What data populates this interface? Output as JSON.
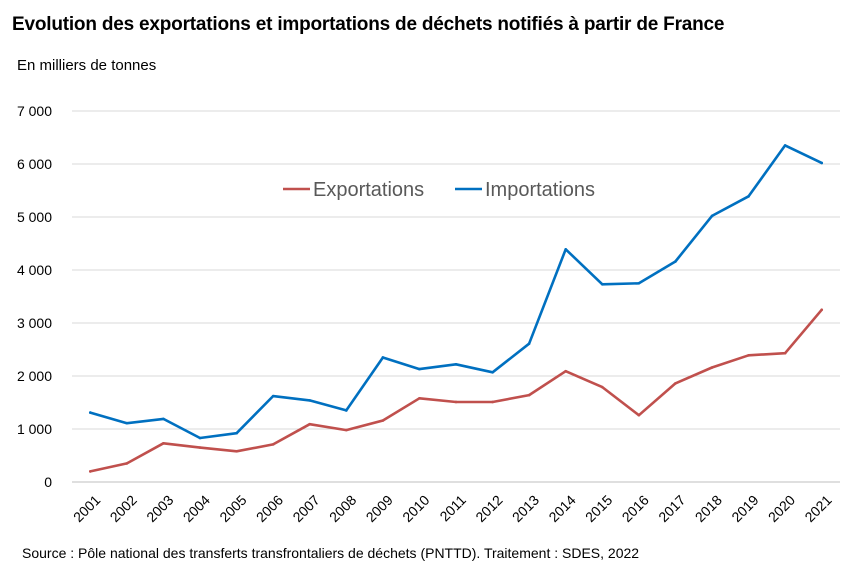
{
  "chart_data": {
    "type": "line",
    "title": "Evolution des exportations et importations de déchets notifiés à partir de France",
    "ylabel": "En milliers de tonnes",
    "xlabel": "",
    "source": "Source : Pôle national des transferts transfrontaliers de déchets (PNTTD). Traitement : SDES, 2022",
    "categories": [
      "2001",
      "2002",
      "2003",
      "2004",
      "2005",
      "2006",
      "2007",
      "2008",
      "2009",
      "2010",
      "2011",
      "2012",
      "2013",
      "2014",
      "2015",
      "2016",
      "2017",
      "2018",
      "2019",
      "2020",
      "2021"
    ],
    "ylim": [
      0,
      7000
    ],
    "yticks": [
      0,
      1000,
      2000,
      3000,
      4000,
      5000,
      6000,
      7000
    ],
    "ytick_labels": [
      "0",
      "1 000",
      "2 000",
      "3 000",
      "4 000",
      "5 000",
      "6 000",
      "7 000"
    ],
    "grid": true,
    "legend_position": "top-center",
    "series": [
      {
        "name": "Exportations",
        "color": "#C0504D",
        "values": [
          200,
          350,
          730,
          650,
          580,
          710,
          1090,
          980,
          1160,
          1580,
          1510,
          1510,
          1640,
          2090,
          1790,
          1260,
          1860,
          2160,
          2390,
          2430,
          3250
        ]
      },
      {
        "name": "Importations",
        "color": "#0070C0",
        "values": [
          1310,
          1110,
          1190,
          830,
          920,
          1620,
          1540,
          1350,
          2350,
          2130,
          2220,
          2070,
          2610,
          4390,
          3730,
          3750,
          4160,
          5020,
          5390,
          6350,
          6020
        ]
      }
    ]
  }
}
